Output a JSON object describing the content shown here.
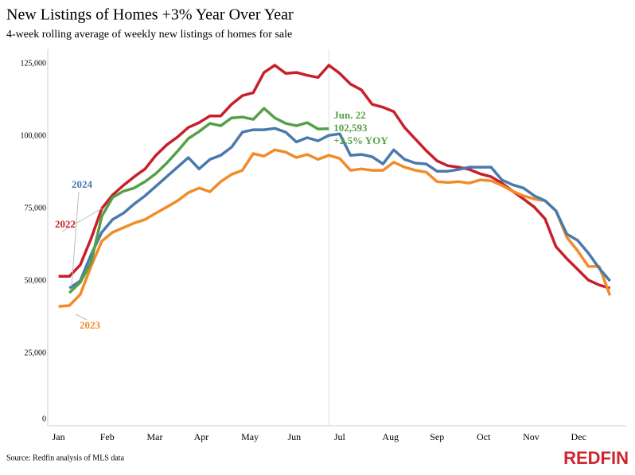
{
  "chart_data": {
    "type": "line",
    "title": "New Listings of Homes +3% Year Over Year",
    "subtitle": "4-week rolling average of weekly new listings of homes for sale",
    "source": "Source: Redfin analysis of MLS data",
    "logo": "REDFIN",
    "x": [
      1,
      2,
      3,
      4,
      5,
      6,
      7,
      8,
      9,
      10,
      11,
      12,
      13,
      14,
      15,
      16,
      17,
      18,
      19,
      20,
      21,
      22,
      23,
      24,
      25,
      26,
      27,
      28,
      29,
      30,
      31,
      32,
      33,
      34,
      35,
      36,
      37,
      38,
      39,
      40,
      41,
      42,
      43,
      44,
      45,
      46,
      47,
      48,
      49,
      50,
      51,
      52
    ],
    "xlim": [
      0,
      53.5
    ],
    "xticks": [
      {
        "value": 1,
        "label": "Jan"
      },
      {
        "value": 5.5,
        "label": "Feb"
      },
      {
        "value": 9.9,
        "label": "Mar"
      },
      {
        "value": 14.2,
        "label": "Apr"
      },
      {
        "value": 18.7,
        "label": "May"
      },
      {
        "value": 22.8,
        "label": "Jun"
      },
      {
        "value": 27,
        "label": "Jul"
      },
      {
        "value": 31.7,
        "label": "Aug"
      },
      {
        "value": 36,
        "label": "Sep"
      },
      {
        "value": 40.3,
        "label": "Oct"
      },
      {
        "value": 44.7,
        "label": "Nov"
      },
      {
        "value": 49.1,
        "label": "Dec"
      }
    ],
    "ylim": [
      0,
      130000
    ],
    "yticks": [
      0,
      {
        "value": 25000,
        "label": "25,000"
      },
      {
        "value": 50000,
        "label": "50,000"
      },
      {
        "value": 75000,
        "label": "75,000"
      },
      {
        "value": 100000,
        "label": "100,000"
      },
      {
        "value": 125000,
        "label": "125,000"
      }
    ],
    "series": [
      {
        "name": "2022",
        "color": "#c8202a",
        "values": [
          51600,
          51600,
          55500,
          64600,
          75000,
          79700,
          83000,
          86000,
          88700,
          93400,
          97000,
          99700,
          103000,
          104700,
          107000,
          107000,
          111000,
          114000,
          115000,
          122000,
          124500,
          121700,
          122000,
          121000,
          120300,
          124500,
          121700,
          118000,
          116000,
          111000,
          110000,
          108500,
          103000,
          99000,
          95000,
          91500,
          89800,
          89300,
          88500,
          87000,
          86000,
          83800,
          81000,
          78300,
          75500,
          71400,
          61800,
          57700,
          54000,
          50300,
          48600,
          47500
        ]
      },
      {
        "name": "2023",
        "color": "#f28c28",
        "values": [
          41200,
          41500,
          45300,
          55000,
          63700,
          66800,
          68400,
          70000,
          71200,
          73400,
          75500,
          77700,
          80500,
          82100,
          80800,
          84300,
          86800,
          88200,
          94000,
          93100,
          95300,
          94500,
          92600,
          93700,
          92000,
          93400,
          92300,
          88200,
          88700,
          88200,
          88200,
          91000,
          89300,
          88200,
          87600,
          84300,
          84000,
          84300,
          83800,
          84900,
          84600,
          83000,
          81000,
          79400,
          78300,
          77700,
          74200,
          65100,
          60400,
          55000,
          55000,
          45000
        ]
      },
      {
        "name": "2024",
        "color": "#4a7aad",
        "values": [
          null,
          47500,
          50000,
          59000,
          66800,
          71200,
          73400,
          76600,
          79400,
          82700,
          86000,
          89300,
          92600,
          88700,
          92000,
          93400,
          96200,
          101400,
          102200,
          102200,
          102700,
          101400,
          98000,
          99500,
          98400,
          100300,
          100800,
          93400,
          93700,
          92900,
          90400,
          95300,
          92000,
          90700,
          90400,
          87900,
          87900,
          88500,
          89300,
          89300,
          89300,
          84900,
          83200,
          82100,
          79400,
          77700,
          74200,
          66200,
          64000,
          59600,
          54400,
          50000
        ]
      },
      {
        "color": "#55a047",
        "values": [
          null,
          45900,
          49500,
          56300,
          72300,
          78800,
          81000,
          82100,
          84300,
          87100,
          90700,
          94800,
          99200,
          101600,
          104400,
          103600,
          106300,
          106600,
          105800,
          109600,
          106300,
          104400,
          103600,
          104700,
          102500,
          102593,
          null,
          null,
          null,
          null,
          null,
          null,
          null,
          null,
          null,
          null,
          null,
          null,
          null,
          null,
          null,
          null,
          null,
          null,
          null,
          null,
          null,
          null,
          null,
          null,
          null,
          null
        ]
      }
    ],
    "annotations": [
      "Jun. 22",
      "102,593",
      "+2.5% YOY"
    ]
  }
}
